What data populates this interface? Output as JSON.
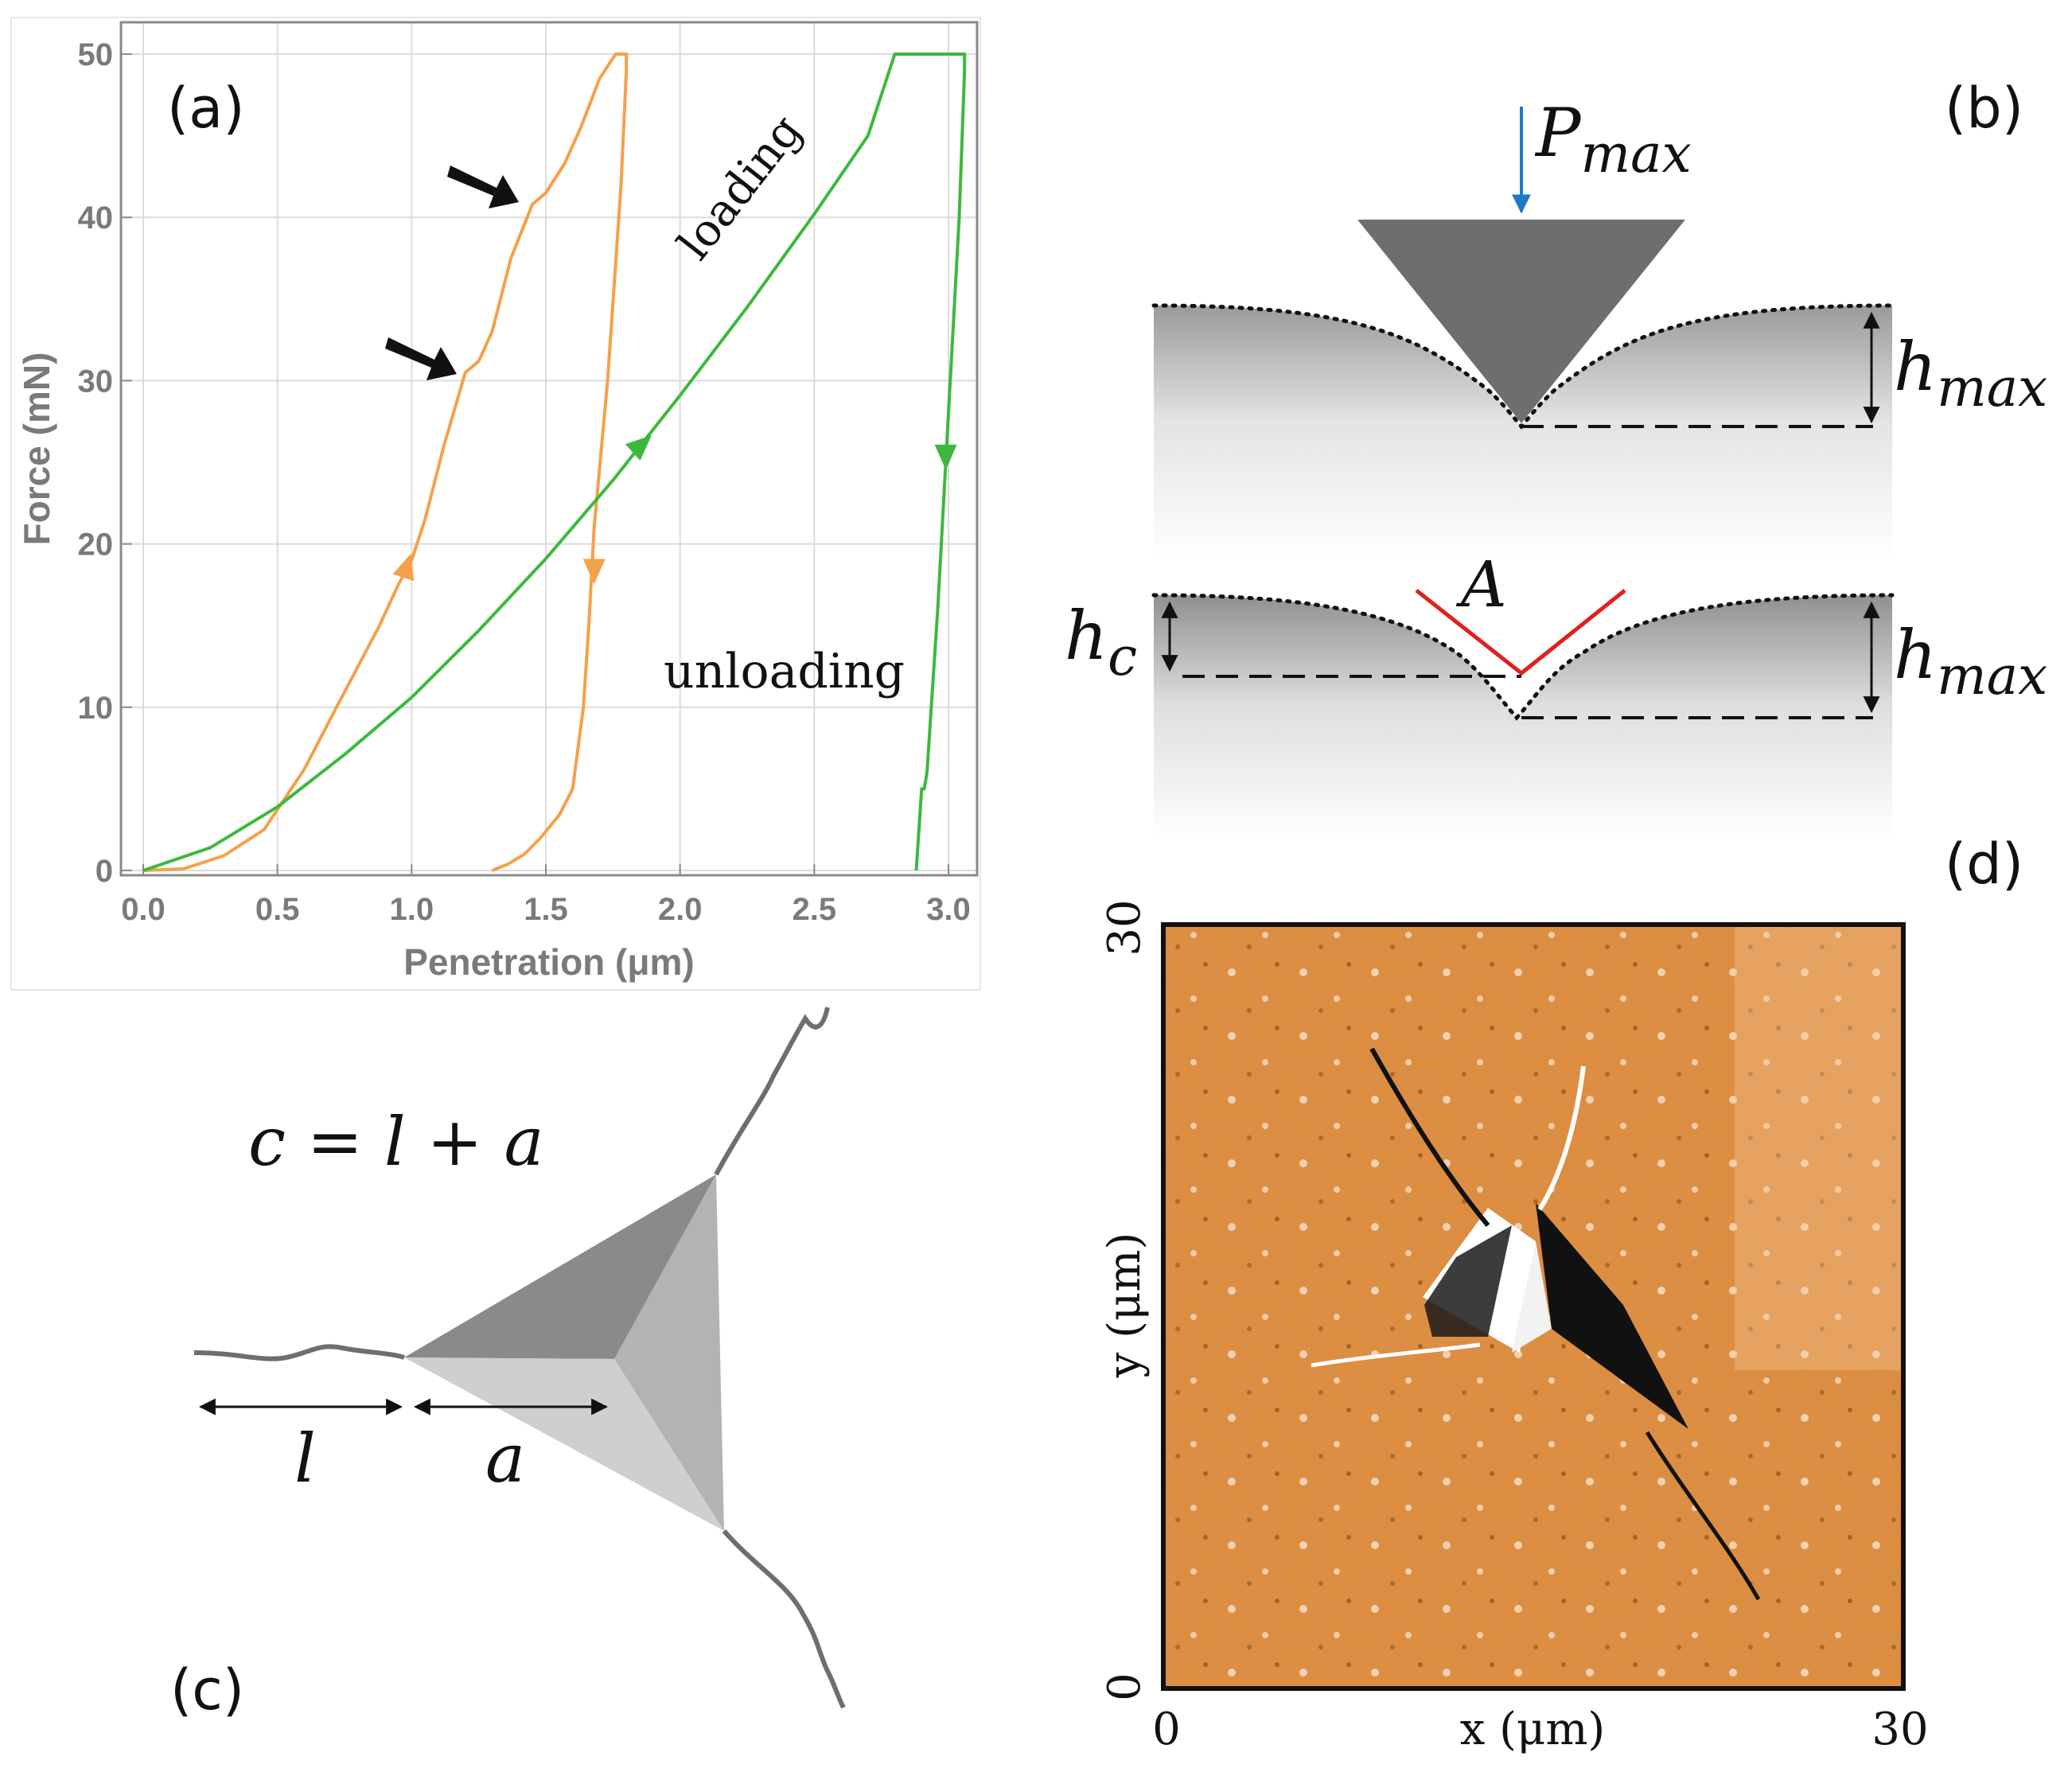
{
  "figure": {
    "panels": [
      "(a)",
      "(b)",
      "(c)",
      "(d)"
    ]
  },
  "colors": {
    "orange": "#f5a04a",
    "green": "#3cb93c",
    "blue": "#1f78c8",
    "red": "#e02020",
    "indenter": "#6e6e6e",
    "afm": "#e98a3a"
  },
  "chart_data": {
    "type": "line",
    "title": "",
    "xlabel": "Penetration (μm)",
    "ylabel": "Force (mN)",
    "xlim": [
      0.0,
      3.0
    ],
    "ylim": [
      0,
      50
    ],
    "xticks": [
      "0.0",
      "0.5",
      "1.0",
      "1.5",
      "2.0",
      "2.5",
      "3.0"
    ],
    "yticks": [
      "0",
      "10",
      "20",
      "30",
      "40",
      "50"
    ],
    "grid": true,
    "series": [
      {
        "name": "orange",
        "color": "#f5a04a",
        "x": [
          0.0,
          0.15,
          0.3,
          0.45,
          0.6,
          0.72,
          0.8,
          0.88,
          0.95,
          1.0,
          1.05,
          1.12,
          1.2,
          1.25,
          1.3,
          1.37,
          1.45,
          1.5,
          1.57,
          1.63,
          1.7,
          1.76,
          1.8,
          1.8,
          1.78,
          1.73,
          1.68,
          1.66,
          1.64,
          1.6,
          1.55,
          1.48,
          1.42,
          1.36,
          1.3
        ],
        "y": [
          0,
          0.1,
          0.9,
          2.5,
          6.2,
          10.0,
          12.5,
          15.0,
          17.5,
          19.0,
          21.5,
          26.0,
          30.5,
          31.2,
          33.0,
          37.5,
          40.8,
          41.5,
          43.3,
          45.5,
          48.5,
          50,
          50,
          49,
          42,
          30,
          21,
          15,
          10,
          5,
          3.4,
          2.0,
          1.0,
          0.4,
          0
        ]
      },
      {
        "name": "green",
        "color": "#3cb93c",
        "x": [
          0.0,
          0.25,
          0.5,
          0.75,
          1.0,
          1.25,
          1.5,
          1.75,
          2.0,
          2.25,
          2.5,
          2.7,
          2.8,
          3.0,
          3.06,
          3.06,
          3.04,
          3.0,
          2.96,
          2.92,
          2.91,
          2.9,
          2.88
        ],
        "y": [
          0,
          1.4,
          3.9,
          7.1,
          10.6,
          14.7,
          19.1,
          23.9,
          29.1,
          34.5,
          40.2,
          45.0,
          50,
          50,
          50,
          49,
          40,
          28,
          16,
          6,
          5,
          5,
          0
        ]
      }
    ],
    "annotations": {
      "loading": "loading",
      "unloading": "unloading"
    }
  },
  "panel_b": {
    "p_label": "P",
    "p_sub": "max",
    "h_label": "h",
    "h_sub": "max",
    "hc_label": "h",
    "hc_sub": "c",
    "area_label": "A"
  },
  "panel_c": {
    "equation": "c = l + a",
    "l_label": "l",
    "a_label": "a"
  },
  "panel_d": {
    "xlabel": "x (μm)",
    "ylabel": "y (μm)",
    "x_min": "0",
    "x_max": "30",
    "y_min": "0",
    "y_max": "30"
  }
}
